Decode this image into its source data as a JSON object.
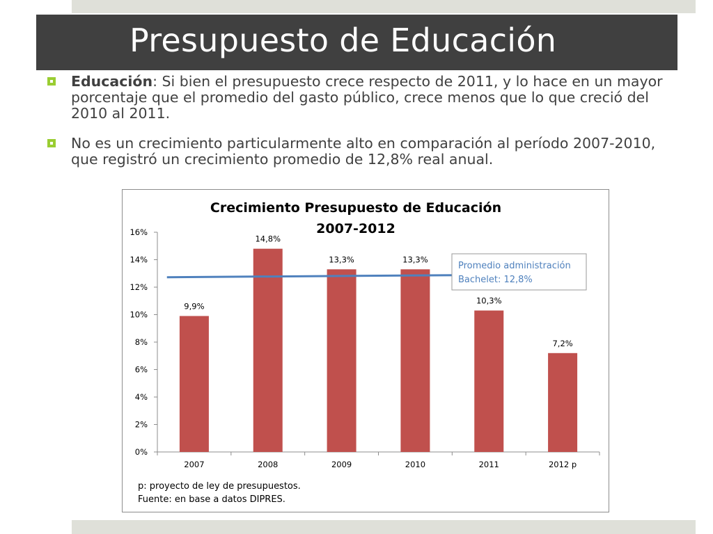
{
  "slide": {
    "title": "Presupuesto de Educación",
    "bullets": [
      {
        "lead": "Educación",
        "text": ": Si bien el presupuesto crece respecto de 2011, y lo hace en un mayor porcentaje que el promedio del gasto público, crece menos que lo que creció del 2010 al 2011."
      },
      {
        "lead": "",
        "text": "No es un crecimiento particularmente alto en comparación al período 2007-2010, que registró un crecimiento promedio de 12,8% real anual."
      }
    ],
    "colors": {
      "title_bar": "#404040",
      "accent_strip": "#dfe0d9",
      "bullet_marker": "#9acd32",
      "bar": "#c0504d",
      "average_line": "#4f81bd",
      "annotation_text": "#4f81bd"
    }
  },
  "chart_data": {
    "type": "bar",
    "title": "Crecimiento Presupuesto de Educación",
    "subtitle": "2007-2012",
    "categories": [
      "2007",
      "2008",
      "2009",
      "2010",
      "2011",
      "2012 p"
    ],
    "values": [
      9.9,
      14.8,
      13.3,
      13.3,
      10.3,
      7.2
    ],
    "data_labels": [
      "9,9%",
      "14,8%",
      "13,3%",
      "13,3%",
      "10,3%",
      "7,2%"
    ],
    "ylim": [
      0,
      16
    ],
    "yticks": [
      0,
      2,
      4,
      6,
      8,
      10,
      12,
      14,
      16
    ],
    "ytick_labels": [
      "0%",
      "2%",
      "4%",
      "6%",
      "8%",
      "10%",
      "12%",
      "14%",
      "16%"
    ],
    "xlabel": "",
    "ylabel": "",
    "grid": false,
    "average_line": {
      "value": 12.8,
      "from_category": "2007",
      "to_category": "2010",
      "annotation_line1": "Promedio administración",
      "annotation_line2": "Bachelet: 12,8%"
    },
    "footnotes": [
      "p: proyecto de ley de presupuestos.",
      "Fuente: en base a datos DIPRES."
    ]
  }
}
